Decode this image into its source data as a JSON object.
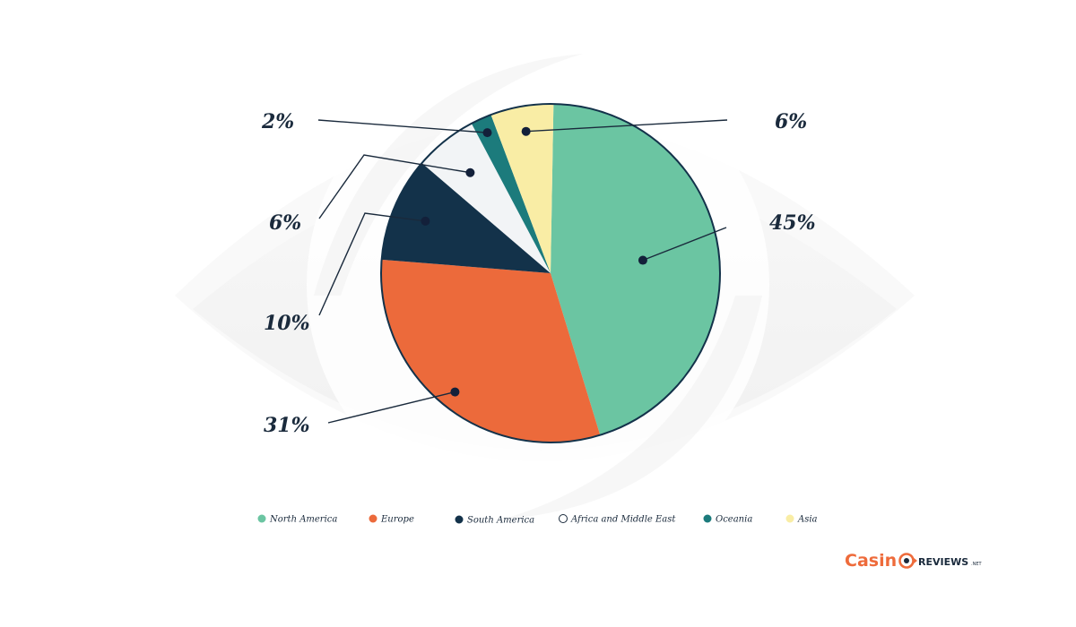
{
  "chart_data": {
    "type": "pie",
    "start_angle_deg": 1,
    "slices": [
      {
        "name": "North America",
        "value": 45,
        "label": "45%",
        "color": "#6bc5a2"
      },
      {
        "name": "Europe",
        "value": 31,
        "label": "31%",
        "color": "#ec6a3b"
      },
      {
        "name": "South America",
        "value": 10,
        "label": "10%",
        "color": "#13324a"
      },
      {
        "name": "Africa and Middle East",
        "value": 6,
        "label": "6%",
        "color": "#f2f4f6"
      },
      {
        "name": "Oceania",
        "value": 2,
        "label": "2%",
        "color": "#1c7b7c"
      },
      {
        "name": "Asia",
        "value": 6,
        "label": "6%",
        "color": "#f9eda5"
      }
    ],
    "legend_position": "bottom"
  },
  "branding": {
    "logo_casino": "Casin",
    "logo_reviews": "REVIEWS",
    "logo_net": ".NET",
    "accent_color": "#ee6b3b"
  }
}
